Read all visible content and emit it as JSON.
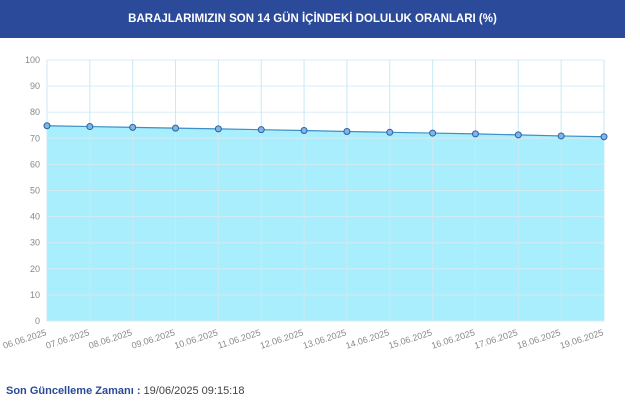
{
  "chart_data": {
    "type": "area",
    "title": "BARAJLARIMIZIN SON 14 GÜN İÇİNDEKİ DOLULUK ORANLARI (%)",
    "categories": [
      "06.06.2025",
      "07.06.2025",
      "08.06.2025",
      "09.06.2025",
      "10.06.2025",
      "11.06.2025",
      "12.06.2025",
      "13.06.2025",
      "14.06.2025",
      "15.06.2025",
      "16.06.2025",
      "17.06.2025",
      "18.06.2025",
      "19.06.2025"
    ],
    "series": [
      {
        "color": "#3d8fc4",
        "values": [
          74.8,
          74.5,
          74.2,
          73.9,
          73.6,
          73.3,
          73.0,
          72.6,
          72.3,
          72.0,
          71.7,
          71.3,
          70.9,
          70.6
        ]
      }
    ],
    "ylim": [
      0,
      100
    ],
    "yticks": [
      0,
      10,
      20,
      30,
      40,
      50,
      60,
      70,
      80,
      90,
      100
    ],
    "grid": true
  },
  "footer": {
    "label": "Son Güncelleme Zamanı :",
    "value": "19/06/2025 09:15:18"
  }
}
